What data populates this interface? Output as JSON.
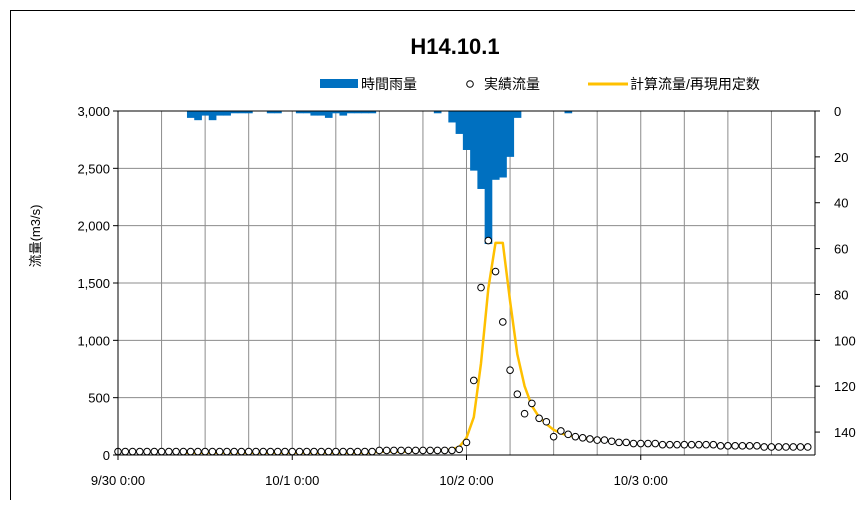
{
  "chart_data": {
    "type": "line",
    "title": "H14.10.1",
    "ylabel": "流量(m3/s)",
    "y2label": "",
    "xlabel": "",
    "x_ticks": [
      "9/30 0:00",
      "10/1 0:00",
      "10/2 0:00",
      "10/3 0:00"
    ],
    "x_range_hours": [
      0,
      96
    ],
    "ylim": [
      0,
      3000
    ],
    "y_ticks": [
      "0",
      "500",
      "1,000",
      "1,500",
      "2,000",
      "2,500",
      "3,000"
    ],
    "y2lim": [
      0,
      150
    ],
    "y2_ticks": [
      "0",
      "20",
      "40",
      "60",
      "80",
      "100",
      "120",
      "140"
    ],
    "y2_inverted": true,
    "grid": true,
    "legend_position": "top",
    "colors": {
      "rain": "#0070c0",
      "calc": "#ffc000",
      "observed_marker": "#000000"
    },
    "series": [
      {
        "name": "時間雨量",
        "kind": "bar",
        "axis": "right",
        "x": [
          9,
          10,
          11,
          12,
          13,
          14,
          15,
          16,
          17,
          18,
          19,
          20,
          21,
          22,
          23,
          24,
          25,
          26,
          27,
          28,
          29,
          30,
          31,
          32,
          33,
          34,
          35,
          36,
          37,
          38,
          39,
          40,
          41,
          42,
          43,
          44,
          45,
          46,
          47,
          48,
          49,
          50,
          51,
          52,
          53,
          54,
          55,
          56,
          57,
          58,
          59,
          60,
          61,
          62,
          63,
          64,
          65,
          66,
          67,
          68
        ],
        "values": [
          0,
          3,
          4,
          2,
          4,
          2,
          2,
          1,
          1,
          1,
          0,
          0,
          1,
          1,
          0,
          0,
          1,
          1,
          2,
          2,
          3,
          1,
          2,
          1,
          1,
          1,
          1,
          0,
          0,
          0,
          0,
          0,
          0,
          0,
          0,
          1,
          0,
          5,
          10,
          17,
          26,
          34,
          58,
          30,
          29,
          20,
          3,
          0,
          0,
          0,
          0,
          0,
          0,
          1,
          0,
          0,
          0,
          0,
          0,
          0
        ]
      },
      {
        "name": "実績流量",
        "kind": "scatter",
        "axis": "left",
        "x": [
          0,
          1,
          2,
          3,
          4,
          5,
          6,
          7,
          8,
          9,
          10,
          11,
          12,
          13,
          14,
          15,
          16,
          17,
          18,
          19,
          20,
          21,
          22,
          23,
          24,
          25,
          26,
          27,
          28,
          29,
          30,
          31,
          32,
          33,
          34,
          35,
          36,
          37,
          38,
          39,
          40,
          41,
          42,
          43,
          44,
          45,
          46,
          47,
          48,
          49,
          50,
          51,
          52,
          53,
          54,
          55,
          56,
          57,
          58,
          59,
          60,
          61,
          62,
          63,
          64,
          65,
          66,
          67,
          68,
          69,
          70,
          71,
          72,
          73,
          74,
          75,
          76,
          77,
          78,
          79,
          80,
          81,
          82,
          83,
          84,
          85,
          86,
          87,
          88,
          89,
          90,
          91,
          92,
          93,
          94,
          95
        ],
        "values": [
          30,
          30,
          30,
          30,
          30,
          30,
          30,
          30,
          30,
          30,
          30,
          30,
          30,
          30,
          30,
          30,
          30,
          30,
          30,
          30,
          30,
          30,
          30,
          30,
          30,
          30,
          30,
          30,
          30,
          30,
          30,
          30,
          30,
          30,
          30,
          30,
          40,
          40,
          40,
          40,
          40,
          40,
          40,
          40,
          40,
          40,
          40,
          50,
          110,
          650,
          1460,
          1870,
          1600,
          1160,
          740,
          530,
          360,
          450,
          320,
          290,
          160,
          210,
          180,
          160,
          150,
          140,
          130,
          130,
          120,
          110,
          110,
          100,
          100,
          100,
          100,
          90,
          90,
          90,
          90,
          90,
          90,
          90,
          90,
          80,
          80,
          80,
          80,
          80,
          80,
          70,
          70,
          70,
          70,
          70,
          70,
          70
        ]
      },
      {
        "name": "計算流量/再現用定数",
        "kind": "line",
        "axis": "left",
        "x": [
          9,
          10,
          11,
          12,
          13,
          14,
          15,
          16,
          17,
          18,
          19,
          20,
          21,
          22,
          23,
          24,
          25,
          26,
          27,
          28,
          29,
          30,
          31,
          32,
          33,
          34,
          35,
          36,
          37,
          38,
          39,
          40,
          41,
          42,
          43,
          44,
          45,
          46,
          47,
          48,
          49,
          50,
          51,
          52,
          53,
          54,
          55,
          56,
          57,
          58,
          59,
          60,
          61,
          62,
          63,
          64,
          65,
          66,
          67
        ],
        "values": [
          20,
          20,
          20,
          20,
          20,
          20,
          20,
          20,
          20,
          20,
          20,
          20,
          20,
          20,
          20,
          20,
          20,
          20,
          20,
          20,
          20,
          20,
          20,
          20,
          20,
          20,
          20,
          30,
          30,
          30,
          30,
          30,
          40,
          40,
          40,
          40,
          40,
          50,
          70,
          150,
          330,
          800,
          1450,
          1850,
          1850,
          1340,
          880,
          600,
          430,
          330,
          270,
          220,
          190,
          170,
          160,
          150,
          140,
          130,
          130
        ]
      }
    ]
  }
}
